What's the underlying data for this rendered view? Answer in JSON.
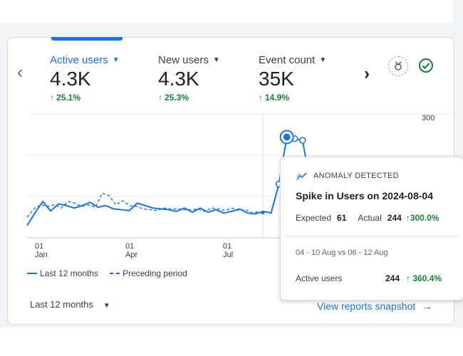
{
  "metrics": [
    {
      "label": "Active users",
      "value": "4.3K",
      "delta": "25.1%",
      "active": true
    },
    {
      "label": "New users",
      "value": "4.3K",
      "delta": "25.3%",
      "active": false
    },
    {
      "label": "Event count",
      "value": "35K",
      "delta": "14.9%",
      "active": false
    }
  ],
  "colors": {
    "accent": "#1a73e8",
    "positive": "#188038"
  },
  "chart_data": {
    "type": "line",
    "y_ticks": [
      "300"
    ],
    "x_ticks": [
      {
        "day": "01",
        "month": "Jan"
      },
      {
        "day": "01",
        "month": "Apr"
      },
      {
        "day": "01",
        "month": "Jul"
      }
    ],
    "series": [
      {
        "name": "Last 12 months",
        "style": "solid",
        "values": [
          30,
          60,
          88,
          65,
          82,
          78,
          72,
          78,
          86,
          74,
          78,
          70,
          68,
          66,
          84,
          78,
          72,
          70,
          68,
          64,
          72,
          62,
          72,
          62,
          68,
          60,
          64,
          70,
          60,
          58,
          64,
          60,
          130,
          244,
          240,
          236,
          130,
          124,
          180,
          148,
          140
        ]
      },
      {
        "name": "Preceding period",
        "style": "dashed",
        "values": [
          50,
          70,
          80,
          76,
          80,
          72,
          88,
          84,
          76,
          80,
          74,
          108,
          102,
          80,
          90,
          78,
          76,
          70,
          68,
          66,
          72,
          70,
          70,
          68,
          68,
          70,
          64,
          72,
          70,
          66,
          72,
          66,
          68,
          60,
          64
        ]
      }
    ]
  },
  "legend": {
    "current": "Last 12 months",
    "previous": "Preceding period"
  },
  "range_select": {
    "label": "Last 12 months"
  },
  "snapshot_link": {
    "label": "View reports snapshot"
  },
  "tooltip": {
    "heading": "ANOMALY DETECTED",
    "title": "Spike in Users on 2024-08-04",
    "expected_label": "Expected",
    "expected_value": "61",
    "actual_label": "Actual",
    "actual_value": "244",
    "actual_pct": "300.0%",
    "range": "04 - 10 Aug vs 06 - 12 Aug",
    "metric_name": "Active users",
    "metric_value": "244",
    "metric_pct": "360.4%"
  }
}
